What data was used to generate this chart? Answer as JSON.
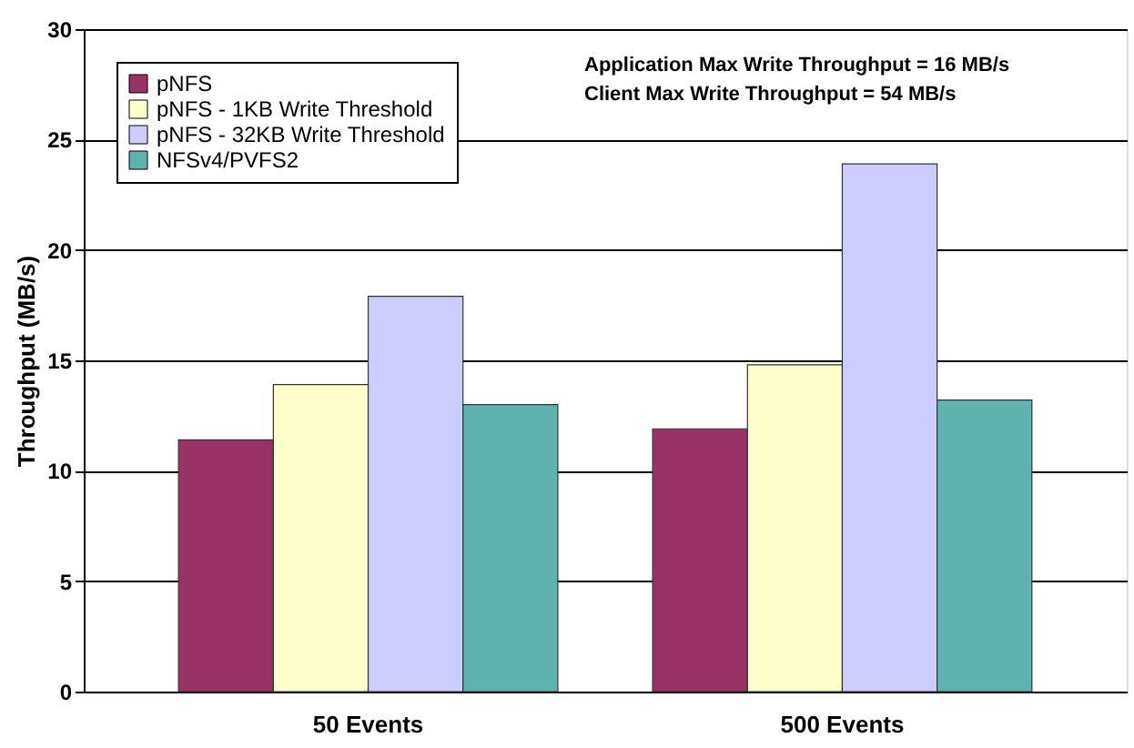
{
  "chart_data": {
    "type": "bar",
    "ylabel": "Throughput (MB/s)",
    "categories": [
      "50 Events",
      "500 Events"
    ],
    "series": [
      {
        "name": "pNFS",
        "color": "#993366",
        "values": [
          11.4,
          11.9
        ]
      },
      {
        "name": "pNFS - 1KB Write Threshold",
        "color": "#ffffcc",
        "values": [
          13.9,
          14.8
        ]
      },
      {
        "name": "pNFS - 32KB Write Threshold",
        "color": "#ccccff",
        "values": [
          17.9,
          23.9
        ]
      },
      {
        "name": "NFSv4/PVFS2",
        "color": "#5fb3ae",
        "values": [
          13.0,
          13.2
        ]
      }
    ],
    "annotations": [
      "Application Max Write Throughput = 16 MB/s",
      "Client Max Write Throughput = 54 MB/s"
    ],
    "ylim": [
      0,
      30
    ],
    "yticks": [
      0,
      5,
      10,
      15,
      20,
      25,
      30
    ],
    "grid": "y",
    "legend": "top left"
  }
}
